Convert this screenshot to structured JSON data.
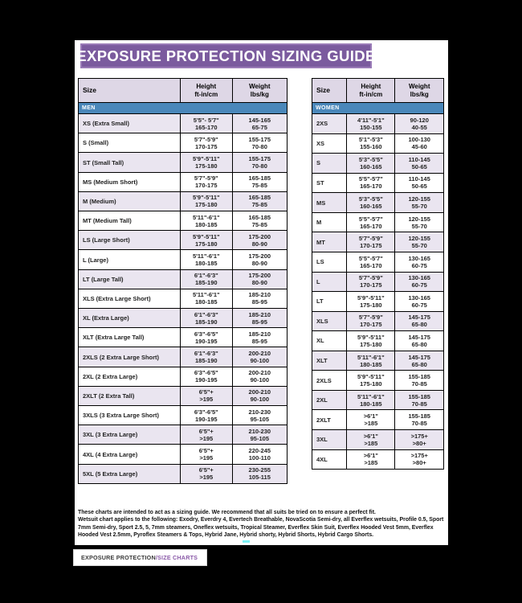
{
  "title": "EXPOSURE PROTECTION SIZING GUIDE",
  "columns": {
    "size": "Size",
    "height": "Height",
    "height_unit": "ft-in/cm",
    "weight": "Weight",
    "weight_unit": "lbs/kg"
  },
  "men": {
    "label": "MEN",
    "rows": [
      {
        "size": "XS (Extra Small)",
        "height_ftin": "5'5\"- 5'7\"",
        "height_cm": "165-170",
        "weight_lbs": "145-165",
        "weight_kg": "65-75"
      },
      {
        "size": "S (Small)",
        "height_ftin": "5'7\"-5'9\"",
        "height_cm": "170-175",
        "weight_lbs": "155-175",
        "weight_kg": "70-80"
      },
      {
        "size": "ST (Small Tall)",
        "height_ftin": "5'9\"-5'11\"",
        "height_cm": "175-180",
        "weight_lbs": "155-175",
        "weight_kg": "70-80"
      },
      {
        "size": "MS (Medium Short)",
        "height_ftin": "5'7\"-5'9\"",
        "height_cm": "170-175",
        "weight_lbs": "165-185",
        "weight_kg": "75-85"
      },
      {
        "size": "M (Medium)",
        "height_ftin": "5'9\"-5'11\"",
        "height_cm": "175-180",
        "weight_lbs": "165-185",
        "weight_kg": "75-85"
      },
      {
        "size": "MT (Medium Tall)",
        "height_ftin": "5'11\"-6'1\"",
        "height_cm": "180-185",
        "weight_lbs": "165-185",
        "weight_kg": "75-85"
      },
      {
        "size": "LS (Large Short)",
        "height_ftin": "5'9\"-5'11\"",
        "height_cm": "175-180",
        "weight_lbs": "175-200",
        "weight_kg": "80-90"
      },
      {
        "size": "L (Large)",
        "height_ftin": "5'11\"-6'1\"",
        "height_cm": "180-185",
        "weight_lbs": "175-200",
        "weight_kg": "80-90"
      },
      {
        "size": "LT (Large Tall)",
        "height_ftin": "6'1\"-6'3\"",
        "height_cm": "185-190",
        "weight_lbs": "175-200",
        "weight_kg": "80-90"
      },
      {
        "size": "XLS (Extra Large Short)",
        "height_ftin": "5'11\"-6'1\"",
        "height_cm": "180-185",
        "weight_lbs": "185-210",
        "weight_kg": "85-95"
      },
      {
        "size": "XL (Extra Large)",
        "height_ftin": "6'1\"-6'3\"",
        "height_cm": "185-190",
        "weight_lbs": "185-210",
        "weight_kg": "85-95"
      },
      {
        "size": "XLT (Extra Large Tall)",
        "height_ftin": "6'3\"-6'5\"",
        "height_cm": "190-195",
        "weight_lbs": "185-210",
        "weight_kg": "85-95"
      },
      {
        "size": "2XLS (2 Extra Large Short)",
        "height_ftin": "6'1\"-6'3\"",
        "height_cm": "185-190",
        "weight_lbs": "200-210",
        "weight_kg": "90-100"
      },
      {
        "size": "2XL (2 Extra Large)",
        "height_ftin": "6'3\"-6'5\"",
        "height_cm": "190-195",
        "weight_lbs": "200-210",
        "weight_kg": "90-100"
      },
      {
        "size": "2XLT (2 Extra Tall)",
        "height_ftin": "6'5\"+",
        "height_cm": ">195",
        "weight_lbs": "200-210",
        "weight_kg": "90-100"
      },
      {
        "size": "3XLS (3 Extra Large Short)",
        "height_ftin": "6'3\"-6'5\"",
        "height_cm": "190-195",
        "weight_lbs": "210-230",
        "weight_kg": "95-105"
      },
      {
        "size": "3XL (3 Extra Large)",
        "height_ftin": "6'5\"+",
        "height_cm": ">195",
        "weight_lbs": "210-230",
        "weight_kg": "95-105"
      },
      {
        "size": "4XL (4 Extra Large)",
        "height_ftin": "6'5\"+",
        "height_cm": ">195",
        "weight_lbs": "220-245",
        "weight_kg": "100-110"
      },
      {
        "size": "5XL (5 Extra Large)",
        "height_ftin": "6'5\"+",
        "height_cm": ">195",
        "weight_lbs": "230-255",
        "weight_kg": "105-115"
      }
    ]
  },
  "women": {
    "label": "WOMEN",
    "rows": [
      {
        "size": "2XS",
        "height_ftin": "4'11\"-5'1\"",
        "height_cm": "150-155",
        "weight_lbs": "90-120",
        "weight_kg": "40-55"
      },
      {
        "size": "XS",
        "height_ftin": "5'1\"-5'3\"",
        "height_cm": "155-160",
        "weight_lbs": "100-130",
        "weight_kg": "45-60"
      },
      {
        "size": "S",
        "height_ftin": "5'3\"-5'5\"",
        "height_cm": "160-165",
        "weight_lbs": "110-145",
        "weight_kg": "50-65"
      },
      {
        "size": "ST",
        "height_ftin": "5'5\"-5'7\"",
        "height_cm": "165-170",
        "weight_lbs": "110-145",
        "weight_kg": "50-65"
      },
      {
        "size": "MS",
        "height_ftin": "5'3\"-5'5\"",
        "height_cm": "160-165",
        "weight_lbs": "120-155",
        "weight_kg": "55-70"
      },
      {
        "size": "M",
        "height_ftin": "5'5\"-5'7\"",
        "height_cm": "165-170",
        "weight_lbs": "120-155",
        "weight_kg": "55-70"
      },
      {
        "size": "MT",
        "height_ftin": "5'7\"-5'9\"",
        "height_cm": "170-175",
        "weight_lbs": "120-155",
        "weight_kg": "55-70"
      },
      {
        "size": "LS",
        "height_ftin": "5'5\"-5'7\"",
        "height_cm": "165-170",
        "weight_lbs": "130-165",
        "weight_kg": "60-75"
      },
      {
        "size": "L",
        "height_ftin": "5'7\"-5'9\"",
        "height_cm": "170-175",
        "weight_lbs": "130-165",
        "weight_kg": "60-75"
      },
      {
        "size": "LT",
        "height_ftin": "5'9\"-5'11\"",
        "height_cm": "175-180",
        "weight_lbs": "130-165",
        "weight_kg": "60-75"
      },
      {
        "size": "XLS",
        "height_ftin": "5'7\"-5'9\"",
        "height_cm": "170-175",
        "weight_lbs": "145-175",
        "weight_kg": "65-80"
      },
      {
        "size": "XL",
        "height_ftin": "5'9\"-5'11\"",
        "height_cm": "175-180",
        "weight_lbs": "145-175",
        "weight_kg": "65-80"
      },
      {
        "size": "XLT",
        "height_ftin": "5'11\"-6'1\"",
        "height_cm": "180-185",
        "weight_lbs": "145-175",
        "weight_kg": "65-80"
      },
      {
        "size": "2XLS",
        "height_ftin": "5'9\"-5'11\"",
        "height_cm": "175-180",
        "weight_lbs": "155-185",
        "weight_kg": "70-85"
      },
      {
        "size": "2XL",
        "height_ftin": "5'11\"-6'1\"",
        "height_cm": "180-185",
        "weight_lbs": "155-185",
        "weight_kg": "70-85"
      },
      {
        "size": "2XLT",
        "height_ftin": ">6'1\"",
        "height_cm": ">185",
        "weight_lbs": "155-185",
        "weight_kg": "70-85"
      },
      {
        "size": "3XL",
        "height_ftin": ">6'1\"",
        "height_cm": ">185",
        "weight_lbs": ">175+",
        "weight_kg": ">80+"
      },
      {
        "size": "4XL",
        "height_ftin": ">6'1\"",
        "height_cm": ">185",
        "weight_lbs": ">175+",
        "weight_kg": ">80+"
      }
    ]
  },
  "footnote_line1": "These charts are intended to act as a sizing guide. We recommend that all suits be tried on to ensure a perfect fit.",
  "footnote_line2": "Wetsuit chart applies to the following: Exodry, Everdry 4, Evertech Breathable, NovaScotia Semi-dry, all Everflex wetsuits, Profile 0.5, Sport 7mm Semi-dry, Sport 2.5, 5, 7mm steamers, Oneflex wetsuits, Tropical Steamer, Everflex Skin Suit, Everflex Hooded Vest 5mm, Everflex Hooded Vest 2.5mm, Pyroflex Steamers & Tops, Hybrid Jane, Hybrid shorty, Hybrid Shorts, Hybrid Cargo Shorts.",
  "footer_tab": {
    "primary": "EXPOSURE PROTECTION",
    "secondary": "/SIZE CHARTS"
  },
  "colors": {
    "banner_fill": "#7b5b9e",
    "banner_border": "#9a7bb7",
    "group_bar_blue": "#4a87ba",
    "header_lavender": "#ded7e6",
    "row_stripe_lavender": "#eae5f0",
    "background": "#000000"
  }
}
